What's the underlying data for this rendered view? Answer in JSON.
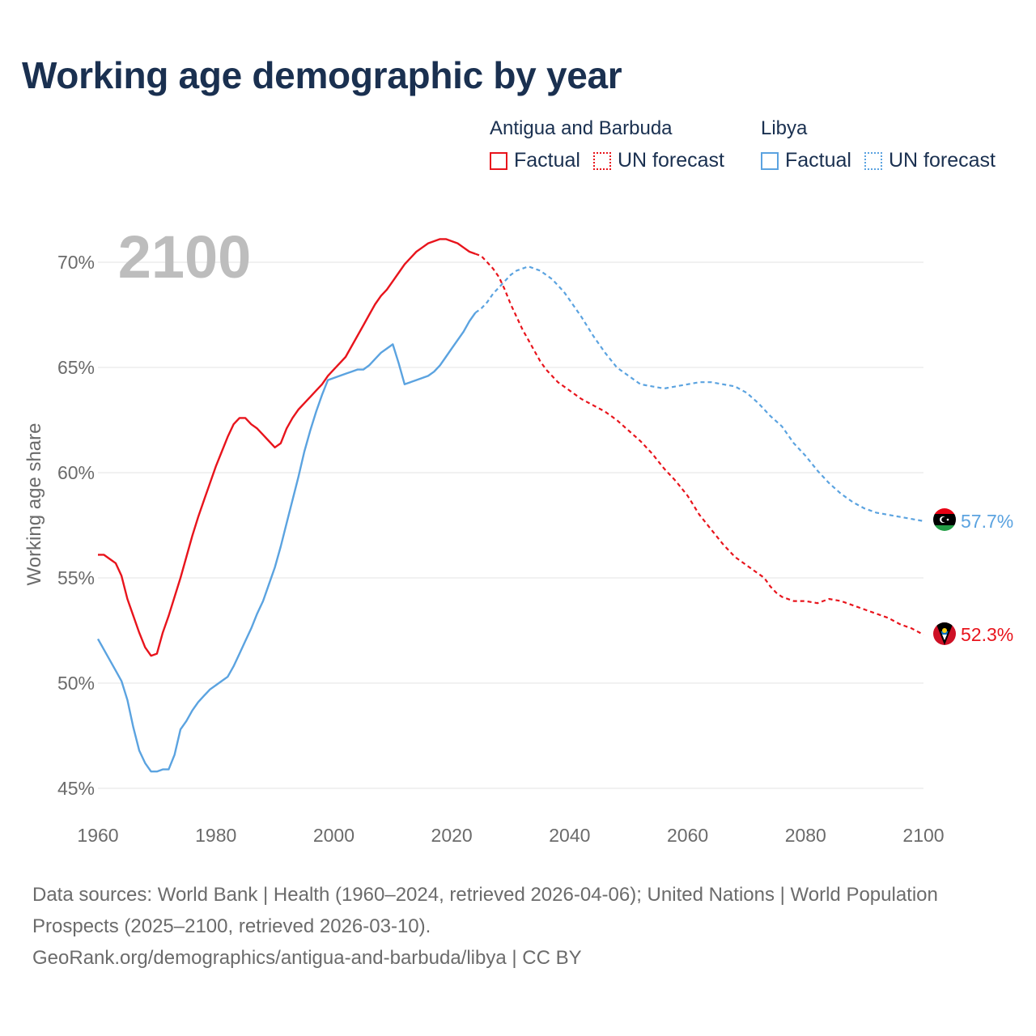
{
  "title": "Working age demographic by year",
  "legend": {
    "groups": [
      {
        "name": "Antigua and Barbuda",
        "color": "#e8141c",
        "items": [
          {
            "label": "Factual",
            "style": "solid"
          },
          {
            "label": "UN forecast",
            "style": "dotted"
          }
        ]
      },
      {
        "name": "Libya",
        "color": "#5ba3e0",
        "items": [
          {
            "label": "Factual",
            "style": "solid"
          },
          {
            "label": "UN forecast",
            "style": "dotted"
          }
        ]
      }
    ]
  },
  "year_label": "2100",
  "footer": {
    "line1": "Data sources: World Bank | Health (1960–2024, retrieved 2026-04-06); United Nations | World Population Prospects (2025–2100, retrieved 2026-03-10).",
    "line2": "GeoRank.org/demographics/antigua-and-barbuda/libya | CC BY"
  },
  "chart_data": {
    "type": "line",
    "title": "Working age demographic by year",
    "xlabel": "",
    "ylabel": "Working age share",
    "xlim": [
      1960,
      2100
    ],
    "ylim": [
      45,
      71
    ],
    "x_ticks": [
      1960,
      1980,
      2000,
      2020,
      2040,
      2060,
      2080,
      2100
    ],
    "y_ticks": [
      45,
      50,
      55,
      60,
      65,
      70
    ],
    "y_tick_labels": [
      "45%",
      "50%",
      "55%",
      "60%",
      "65%",
      "70%"
    ],
    "grid": true,
    "forecast_start": 2025,
    "series": [
      {
        "name": "Antigua and Barbuda",
        "color": "#e8141c",
        "end_label": "52.3%",
        "flag": "antigua-and-barbuda",
        "factual": [
          [
            1960,
            56.1
          ],
          [
            1961,
            56.1
          ],
          [
            1962,
            55.9
          ],
          [
            1963,
            55.7
          ],
          [
            1964,
            55.1
          ],
          [
            1965,
            54
          ],
          [
            1966,
            53.2
          ],
          [
            1967,
            52.4
          ],
          [
            1968,
            51.7
          ],
          [
            1969,
            51.3
          ],
          [
            1970,
            51.4
          ],
          [
            1971,
            52.4
          ],
          [
            1972,
            53.2
          ],
          [
            1973,
            54.1
          ],
          [
            1974,
            55
          ],
          [
            1975,
            56
          ],
          [
            1976,
            57
          ],
          [
            1977,
            57.9
          ],
          [
            1978,
            58.7
          ],
          [
            1979,
            59.5
          ],
          [
            1980,
            60.3
          ],
          [
            1981,
            61
          ],
          [
            1982,
            61.7
          ],
          [
            1983,
            62.3
          ],
          [
            1984,
            62.6
          ],
          [
            1985,
            62.6
          ],
          [
            1986,
            62.3
          ],
          [
            1987,
            62.1
          ],
          [
            1988,
            61.8
          ],
          [
            1989,
            61.5
          ],
          [
            1990,
            61.2
          ],
          [
            1991,
            61.4
          ],
          [
            1992,
            62.1
          ],
          [
            1993,
            62.6
          ],
          [
            1994,
            63
          ],
          [
            1995,
            63.3
          ],
          [
            1996,
            63.6
          ],
          [
            1997,
            63.9
          ],
          [
            1998,
            64.2
          ],
          [
            1999,
            64.6
          ],
          [
            2000,
            64.9
          ],
          [
            2001,
            65.2
          ],
          [
            2002,
            65.5
          ],
          [
            2003,
            66
          ],
          [
            2004,
            66.5
          ],
          [
            2005,
            67
          ],
          [
            2006,
            67.5
          ],
          [
            2007,
            68
          ],
          [
            2008,
            68.4
          ],
          [
            2009,
            68.7
          ],
          [
            2010,
            69.1
          ],
          [
            2011,
            69.5
          ],
          [
            2012,
            69.9
          ],
          [
            2013,
            70.2
          ],
          [
            2014,
            70.5
          ],
          [
            2015,
            70.7
          ],
          [
            2016,
            70.9
          ],
          [
            2017,
            71
          ],
          [
            2018,
            71.1
          ],
          [
            2019,
            71.1
          ],
          [
            2020,
            71
          ],
          [
            2021,
            70.9
          ],
          [
            2022,
            70.7
          ],
          [
            2023,
            70.5
          ],
          [
            2024,
            70.4
          ]
        ],
        "forecast": [
          [
            2024,
            70.4
          ],
          [
            2025,
            70.3
          ],
          [
            2026,
            70
          ],
          [
            2027,
            69.7
          ],
          [
            2028,
            69.3
          ],
          [
            2029,
            68.7
          ],
          [
            2030,
            68
          ],
          [
            2031,
            67.4
          ],
          [
            2032,
            66.8
          ],
          [
            2033,
            66.3
          ],
          [
            2034,
            65.8
          ],
          [
            2035,
            65.3
          ],
          [
            2036,
            64.9
          ],
          [
            2037,
            64.6
          ],
          [
            2038,
            64.3
          ],
          [
            2039,
            64.1
          ],
          [
            2040,
            63.9
          ],
          [
            2042,
            63.5
          ],
          [
            2044,
            63.2
          ],
          [
            2046,
            62.9
          ],
          [
            2048,
            62.5
          ],
          [
            2050,
            62
          ],
          [
            2052,
            61.5
          ],
          [
            2054,
            60.9
          ],
          [
            2056,
            60.2
          ],
          [
            2058,
            59.6
          ],
          [
            2060,
            58.9
          ],
          [
            2062,
            58
          ],
          [
            2064,
            57.3
          ],
          [
            2066,
            56.6
          ],
          [
            2068,
            56
          ],
          [
            2070,
            55.6
          ],
          [
            2072,
            55.2
          ],
          [
            2073,
            55
          ],
          [
            2074,
            54.6
          ],
          [
            2075,
            54.3
          ],
          [
            2076,
            54.1
          ],
          [
            2078,
            53.9
          ],
          [
            2080,
            53.9
          ],
          [
            2082,
            53.8
          ],
          [
            2084,
            54
          ],
          [
            2086,
            53.9
          ],
          [
            2088,
            53.7
          ],
          [
            2090,
            53.5
          ],
          [
            2092,
            53.3
          ],
          [
            2094,
            53.1
          ],
          [
            2096,
            52.8
          ],
          [
            2098,
            52.6
          ],
          [
            2100,
            52.3
          ]
        ]
      },
      {
        "name": "Libya",
        "color": "#5ba3e0",
        "end_label": "57.7%",
        "flag": "libya",
        "factual": [
          [
            1960,
            52.1
          ],
          [
            1961,
            51.6
          ],
          [
            1962,
            51.1
          ],
          [
            1963,
            50.6
          ],
          [
            1964,
            50.1
          ],
          [
            1965,
            49.2
          ],
          [
            1966,
            47.9
          ],
          [
            1967,
            46.8
          ],
          [
            1968,
            46.2
          ],
          [
            1969,
            45.8
          ],
          [
            1970,
            45.8
          ],
          [
            1971,
            45.9
          ],
          [
            1972,
            45.9
          ],
          [
            1973,
            46.6
          ],
          [
            1974,
            47.8
          ],
          [
            1975,
            48.2
          ],
          [
            1976,
            48.7
          ],
          [
            1977,
            49.1
          ],
          [
            1978,
            49.4
          ],
          [
            1979,
            49.7
          ],
          [
            1980,
            49.9
          ],
          [
            1981,
            50.1
          ],
          [
            1982,
            50.3
          ],
          [
            1983,
            50.8
          ],
          [
            1984,
            51.4
          ],
          [
            1985,
            52
          ],
          [
            1986,
            52.6
          ],
          [
            1987,
            53.3
          ],
          [
            1988,
            53.9
          ],
          [
            1989,
            54.7
          ],
          [
            1990,
            55.5
          ],
          [
            1991,
            56.5
          ],
          [
            1992,
            57.6
          ],
          [
            1993,
            58.7
          ],
          [
            1994,
            59.8
          ],
          [
            1995,
            61
          ],
          [
            1996,
            62
          ],
          [
            1997,
            62.9
          ],
          [
            1998,
            63.7
          ],
          [
            1999,
            64.4
          ],
          [
            2000,
            64.5
          ],
          [
            2001,
            64.6
          ],
          [
            2002,
            64.7
          ],
          [
            2003,
            64.8
          ],
          [
            2004,
            64.9
          ],
          [
            2005,
            64.9
          ],
          [
            2006,
            65.1
          ],
          [
            2007,
            65.4
          ],
          [
            2008,
            65.7
          ],
          [
            2009,
            65.9
          ],
          [
            2010,
            66.1
          ],
          [
            2011,
            65.2
          ],
          [
            2012,
            64.2
          ],
          [
            2013,
            64.3
          ],
          [
            2014,
            64.4
          ],
          [
            2015,
            64.5
          ],
          [
            2016,
            64.6
          ],
          [
            2017,
            64.8
          ],
          [
            2018,
            65.1
          ],
          [
            2019,
            65.5
          ],
          [
            2020,
            65.9
          ],
          [
            2021,
            66.3
          ],
          [
            2022,
            66.7
          ],
          [
            2023,
            67.2
          ],
          [
            2024,
            67.6
          ]
        ],
        "forecast": [
          [
            2024,
            67.6
          ],
          [
            2025,
            67.8
          ],
          [
            2026,
            68.1
          ],
          [
            2027,
            68.5
          ],
          [
            2028,
            68.8
          ],
          [
            2029,
            69.1
          ],
          [
            2030,
            69.4
          ],
          [
            2031,
            69.6
          ],
          [
            2032,
            69.7
          ],
          [
            2033,
            69.8
          ],
          [
            2034,
            69.7
          ],
          [
            2035,
            69.6
          ],
          [
            2036,
            69.4
          ],
          [
            2037,
            69.2
          ],
          [
            2038,
            68.9
          ],
          [
            2039,
            68.6
          ],
          [
            2040,
            68.2
          ],
          [
            2042,
            67.4
          ],
          [
            2044,
            66.5
          ],
          [
            2046,
            65.7
          ],
          [
            2048,
            65
          ],
          [
            2050,
            64.6
          ],
          [
            2052,
            64.2
          ],
          [
            2054,
            64.1
          ],
          [
            2056,
            64
          ],
          [
            2058,
            64.1
          ],
          [
            2060,
            64.2
          ],
          [
            2062,
            64.3
          ],
          [
            2064,
            64.3
          ],
          [
            2066,
            64.2
          ],
          [
            2068,
            64.1
          ],
          [
            2070,
            63.8
          ],
          [
            2072,
            63.3
          ],
          [
            2074,
            62.7
          ],
          [
            2076,
            62.2
          ],
          [
            2078,
            61.4
          ],
          [
            2080,
            60.8
          ],
          [
            2082,
            60.1
          ],
          [
            2084,
            59.5
          ],
          [
            2086,
            59
          ],
          [
            2088,
            58.6
          ],
          [
            2090,
            58.3
          ],
          [
            2092,
            58.1
          ],
          [
            2094,
            58
          ],
          [
            2096,
            57.9
          ],
          [
            2098,
            57.8
          ],
          [
            2100,
            57.7
          ]
        ]
      }
    ]
  }
}
